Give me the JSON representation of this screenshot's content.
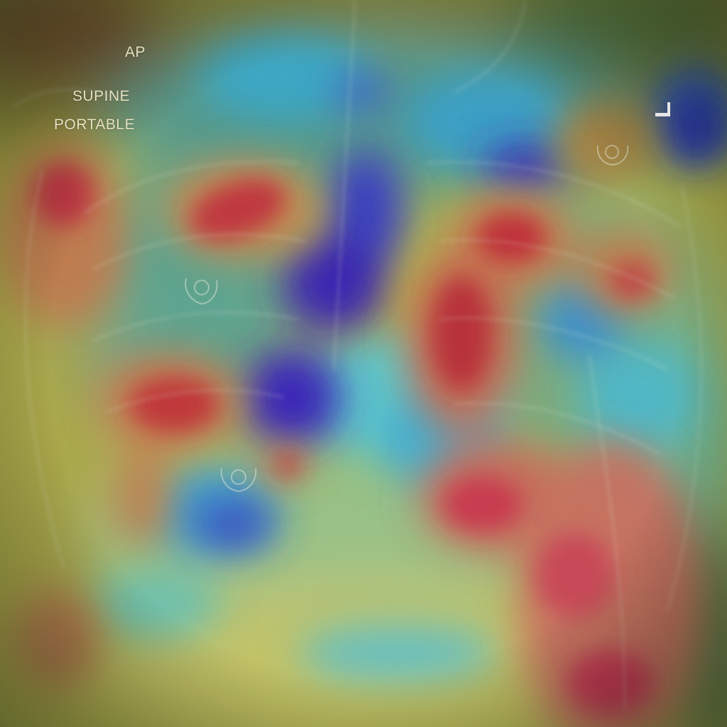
{
  "image": {
    "description_tags": [
      "chest-xray",
      "heatmap-overlay"
    ],
    "palette": {
      "base_yellow": "#c8c25a",
      "olive": "#8a8a3a",
      "teal": "#4fb0b0",
      "cyan": "#5ec3c8",
      "blue": "#3a5fc0",
      "indigo": "#4a2aa8",
      "red": "#c0404a",
      "orange": "#c88a4a",
      "text": "#e6e2c0"
    }
  },
  "labels": {
    "view": "AP",
    "position": "SUPINE",
    "technique": "PORTABLE"
  },
  "marker": {
    "icon": "corner-bracket-icon"
  }
}
